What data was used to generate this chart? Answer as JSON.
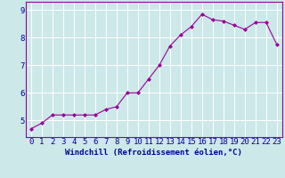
{
  "x": [
    0,
    1,
    2,
    3,
    4,
    5,
    6,
    7,
    8,
    9,
    10,
    11,
    12,
    13,
    14,
    15,
    16,
    17,
    18,
    19,
    20,
    21,
    22,
    23
  ],
  "y": [
    4.7,
    4.9,
    5.2,
    5.2,
    5.2,
    5.2,
    5.2,
    5.4,
    5.5,
    6.0,
    6.0,
    6.5,
    7.0,
    7.7,
    8.1,
    8.4,
    8.85,
    8.65,
    8.6,
    8.45,
    8.3,
    8.55,
    8.55,
    7.75
  ],
  "line_color": "#990099",
  "marker": "D",
  "marker_size": 2.0,
  "bg_color": "#cce8e8",
  "grid_color": "#ffffff",
  "xlabel": "Windchill (Refroidissement éolien,°C)",
  "xlim": [
    -0.5,
    23.5
  ],
  "ylim": [
    4.4,
    9.3
  ],
  "yticks": [
    5,
    6,
    7,
    8,
    9
  ],
  "xticks": [
    0,
    1,
    2,
    3,
    4,
    5,
    6,
    7,
    8,
    9,
    10,
    11,
    12,
    13,
    14,
    15,
    16,
    17,
    18,
    19,
    20,
    21,
    22,
    23
  ],
  "xlabel_color": "#000099",
  "spine_color": "#990099",
  "tick_label_color": "#000099",
  "font_size_xlabel": 6.5,
  "font_size_tick": 6.5
}
